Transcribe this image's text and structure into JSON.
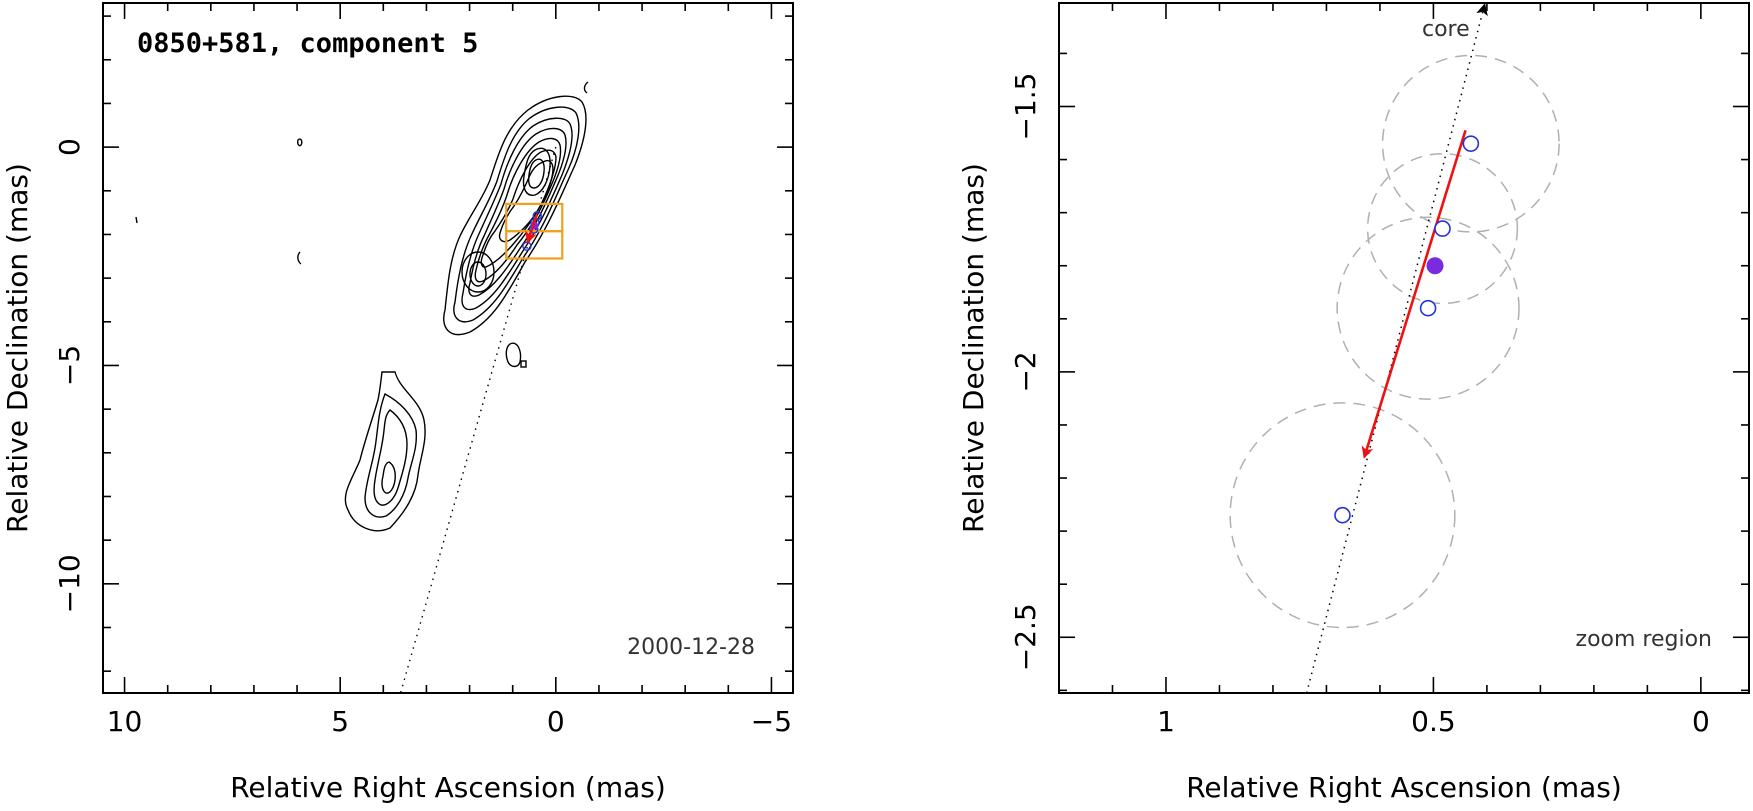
{
  "chart_data": [
    {
      "type": "contour",
      "title": "0850+581, component 5",
      "date_label": "2000-12-28",
      "xlabel": "Relative Right Ascension (mas)",
      "ylabel": "Relative Declination (mas)",
      "xlim": [
        10.5,
        -5.5
      ],
      "ylim": [
        -12.5,
        3.3
      ],
      "xticks": [
        10,
        5,
        0,
        -5
      ],
      "yticks": [
        0,
        -5,
        -10
      ],
      "xtick_labels": [
        "10",
        "5",
        "0",
        "−5"
      ],
      "ytick_labels": [
        "0",
        "−5",
        "−10"
      ],
      "zoom_box": {
        "x": [
          -0.15,
          1.15
        ],
        "y": [
          -2.55,
          -1.3
        ],
        "color": "#f0a020"
      },
      "motion_arrow": {
        "from": [
          0.44,
          -1.55
        ],
        "to": [
          0.65,
          -2.17
        ],
        "color": "#ee1111"
      },
      "jet_axis": {
        "from": [
          0.0,
          0.0
        ],
        "to": [
          3.6,
          -12.5
        ]
      }
    },
    {
      "type": "scatter",
      "annotation": "zoom region",
      "core_label": "core",
      "xlabel": "Relative Right Ascension (mas)",
      "ylabel": "Relative Declination (mas)",
      "xlim": [
        1.2,
        -0.09
      ],
      "ylim": [
        -2.605,
        -1.305
      ],
      "xticks": [
        1,
        0.5,
        0
      ],
      "yticks": [
        -1.5,
        -2,
        -2.5
      ],
      "xtick_labels": [
        "1",
        "0.5",
        "0"
      ],
      "ytick_labels": [
        "−1.5",
        "−2",
        "−2.5"
      ],
      "points": [
        {
          "x": 0.43,
          "y": -1.57,
          "r": 0.165
        },
        {
          "x": 0.483,
          "y": -1.73,
          "r": 0.14
        },
        {
          "x": 0.51,
          "y": -1.88,
          "r": 0.17
        },
        {
          "x": 0.67,
          "y": -2.27,
          "r": 0.21
        }
      ],
      "epoch_point": {
        "x": 0.497,
        "y": -1.8,
        "color": "#7a2be0"
      },
      "motion_arrow": {
        "from": [
          0.44,
          -1.545
        ],
        "to": [
          0.629,
          -2.16
        ],
        "color": "#ee1111"
      },
      "jet_axis": {
        "from": [
          0.737,
          -2.605
        ],
        "to": [
          0.4045,
          -1.305
        ],
        "color": "#000000"
      }
    }
  ]
}
